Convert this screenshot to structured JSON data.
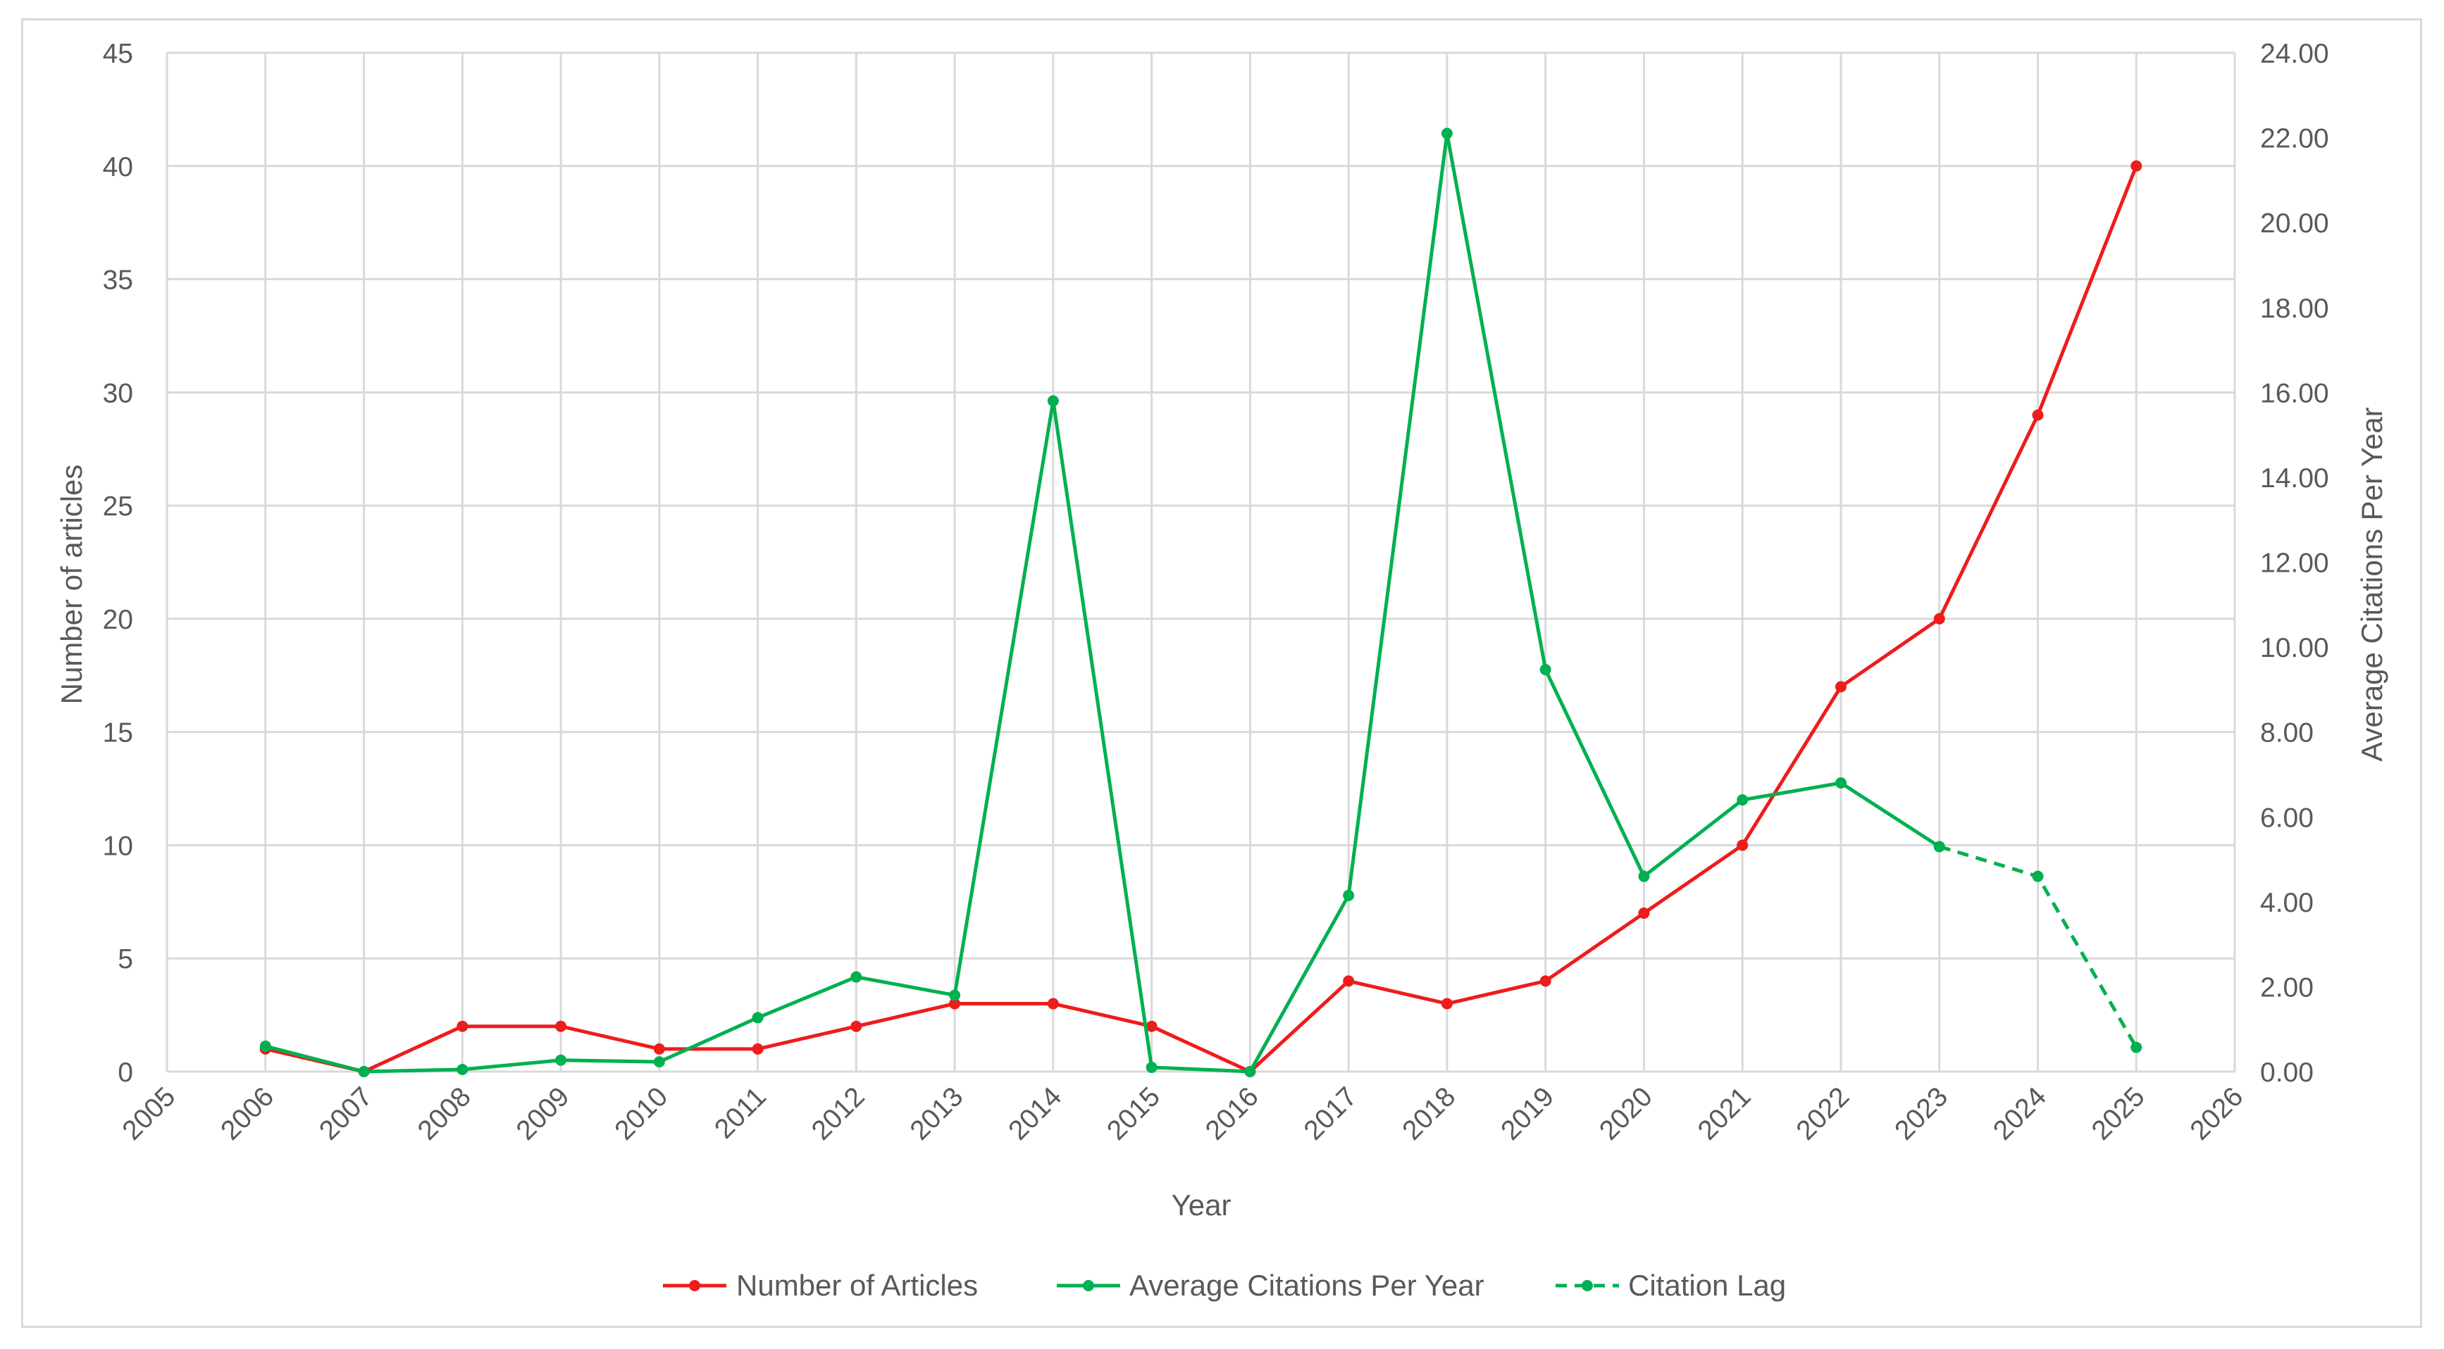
{
  "chart_data": {
    "type": "line",
    "x_title": "Year",
    "y_left_title": "Number of articles",
    "y_right_title": "Average Citations Per Year",
    "x_range": [
      2005,
      2026
    ],
    "x_ticks": [
      "2005",
      "2006",
      "2007",
      "2008",
      "2009",
      "2010",
      "2011",
      "2012",
      "2013",
      "2014",
      "2015",
      "2016",
      "2017",
      "2018",
      "2019",
      "2020",
      "2021",
      "2022",
      "2023",
      "2024",
      "2025",
      "2026"
    ],
    "y_left_range": [
      0,
      45
    ],
    "y_left_ticks": [
      "0",
      "5",
      "10",
      "15",
      "20",
      "25",
      "30",
      "35",
      "40",
      "45"
    ],
    "y_right_range": [
      0,
      24
    ],
    "y_right_ticks": [
      "0.00",
      "2.00",
      "4.00",
      "6.00",
      "8.00",
      "10.00",
      "12.00",
      "14.00",
      "16.00",
      "18.00",
      "20.00",
      "22.00",
      "24.00"
    ],
    "grid": "on",
    "legend_position": "bottom",
    "series": [
      {
        "name": "Number of Articles",
        "axis": "left",
        "color": "#ee1c1c",
        "style": "solid",
        "x": [
          2006,
          2007,
          2008,
          2009,
          2010,
          2011,
          2012,
          2013,
          2014,
          2015,
          2016,
          2017,
          2018,
          2019,
          2020,
          2021,
          2022,
          2023,
          2024,
          2025
        ],
        "values": [
          1,
          0,
          2,
          2,
          1,
          1,
          2,
          3,
          3,
          2,
          0,
          4,
          3,
          4,
          7,
          10,
          17,
          20,
          29,
          40
        ]
      },
      {
        "name": "Average Citations Per Year",
        "axis": "right",
        "color": "#00b050",
        "style": "solid",
        "x": [
          2006,
          2007,
          2008,
          2009,
          2010,
          2011,
          2012,
          2013,
          2014,
          2015,
          2016,
          2017,
          2018,
          2019,
          2020,
          2021,
          2022,
          2023
        ],
        "values": [
          0.6,
          0,
          0.05,
          0.27,
          0.23,
          1.27,
          2.23,
          1.8,
          15.8,
          0.1,
          0,
          4.15,
          22.1,
          9.47,
          4.6,
          6.4,
          6.8,
          5.3
        ]
      },
      {
        "name": "Citation Lag",
        "axis": "right",
        "color": "#00b050",
        "style": "dashed",
        "x": [
          2023,
          2024,
          2025
        ],
        "values": [
          5.3,
          4.6,
          0.57
        ]
      }
    ]
  }
}
